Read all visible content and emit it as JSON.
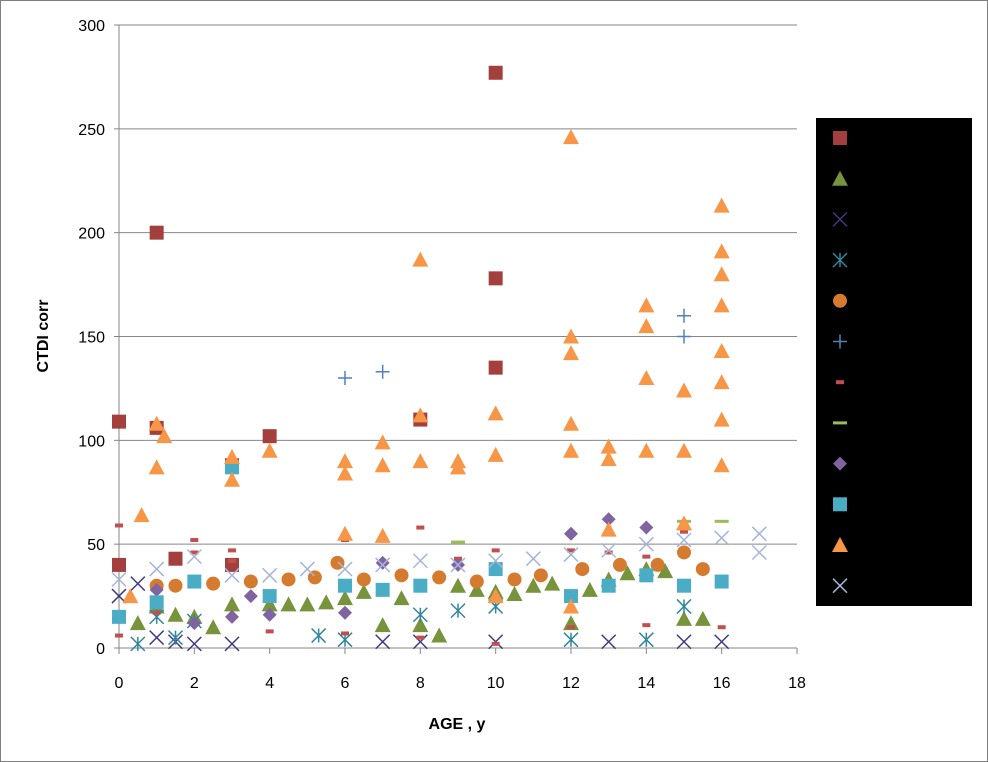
{
  "chart_data": {
    "type": "scatter",
    "title": "",
    "xlabel": "AGE , y",
    "ylabel": "CTDI corr",
    "xlim": [
      0,
      18
    ],
    "ylim": [
      0,
      300
    ],
    "xticks": [
      0,
      2,
      4,
      6,
      8,
      10,
      12,
      14,
      16,
      18
    ],
    "yticks": [
      0,
      50,
      100,
      150,
      200,
      250,
      300
    ],
    "grid": "horizontal",
    "legend_position": "right",
    "series": [
      {
        "name": "",
        "marker": "square",
        "color": "#a3403d",
        "x": [
          0,
          0,
          1,
          1,
          1.5,
          3,
          3,
          4,
          8,
          10,
          10,
          10
        ],
        "y": [
          109,
          40,
          200,
          106,
          43,
          40,
          88,
          102,
          110,
          277,
          178,
          135
        ]
      },
      {
        "name": "",
        "marker": "triangle",
        "color": "#77933c",
        "x": [
          0.5,
          1,
          1.5,
          2,
          2.5,
          3,
          4,
          4.5,
          5,
          5.5,
          6,
          6.5,
          7,
          7.5,
          8,
          8.5,
          9,
          9.5,
          10,
          10.5,
          11,
          11.5,
          12,
          12.5,
          13,
          13.5,
          14,
          14.5,
          15,
          15.5
        ],
        "y": [
          12,
          20,
          16,
          15,
          10,
          21,
          21,
          21,
          21,
          22,
          24,
          27,
          11,
          24,
          11,
          6,
          30,
          28,
          27,
          26,
          30,
          31,
          12,
          28,
          33,
          36,
          38,
          37,
          14,
          14
        ]
      },
      {
        "name": "",
        "marker": "x",
        "color": "#3f3a80",
        "x": [
          0,
          0.5,
          1,
          1.5,
          2,
          3,
          7,
          8,
          10,
          13,
          15,
          16
        ],
        "y": [
          25,
          31,
          5,
          3,
          2,
          2,
          3,
          3,
          3,
          3,
          3,
          3
        ]
      },
      {
        "name": "",
        "marker": "star",
        "color": "#31859c",
        "x": [
          0.5,
          1,
          1.5,
          2,
          5.3,
          6,
          8,
          9,
          10,
          12,
          14,
          15
        ],
        "y": [
          2,
          15,
          5,
          13,
          6,
          4,
          16,
          18,
          20,
          4,
          4,
          20
        ]
      },
      {
        "name": "",
        "marker": "circle",
        "color": "#d47b2f",
        "x": [
          1,
          1.5,
          2.5,
          3.5,
          4.5,
          5.2,
          5.8,
          6.5,
          7.5,
          8.5,
          9.5,
          10.5,
          11.2,
          12.3,
          13.3,
          14.3,
          15,
          15.5
        ],
        "y": [
          30,
          30,
          31,
          32,
          33,
          34,
          41,
          33,
          35,
          34,
          32,
          33,
          35,
          38,
          40,
          40,
          46,
          38
        ]
      },
      {
        "name": "",
        "marker": "plus",
        "color": "#4f81bd",
        "x": [
          6,
          7,
          15,
          15
        ],
        "y": [
          130,
          133,
          160,
          150
        ]
      },
      {
        "name": "",
        "marker": "dash",
        "color": "#c0504d",
        "x": [
          0,
          0,
          1,
          2,
          2,
          3,
          3,
          4,
          6,
          6,
          7,
          8,
          8,
          9,
          10,
          10,
          12,
          12,
          13,
          13,
          14,
          14,
          15,
          16
        ],
        "y": [
          59,
          6,
          17,
          52,
          46,
          47,
          42,
          8,
          52,
          7,
          53,
          58,
          5,
          43,
          47,
          2,
          47,
          10,
          56,
          46,
          44,
          11,
          56,
          10
        ]
      },
      {
        "name": "",
        "marker": "line",
        "color": "#9bbb59",
        "x": [
          9,
          15,
          16
        ],
        "y": [
          51,
          61,
          61
        ]
      },
      {
        "name": "",
        "marker": "diamond",
        "color": "#8064a2",
        "x": [
          1,
          2,
          3,
          3.5,
          4,
          6,
          7,
          9,
          12,
          13,
          14
        ],
        "y": [
          28,
          12,
          15,
          25,
          16,
          17,
          41,
          40,
          55,
          62,
          58
        ]
      },
      {
        "name": "",
        "marker": "square",
        "color": "#4bacc6",
        "x": [
          0,
          1,
          2,
          3,
          4,
          6,
          7,
          8,
          10,
          12,
          13,
          14,
          15,
          16
        ],
        "y": [
          15,
          22,
          32,
          87,
          25,
          30,
          28,
          30,
          38,
          25,
          30,
          35,
          30,
          32
        ]
      },
      {
        "name": "",
        "marker": "triangle",
        "color": "#f79646",
        "x": [
          0.3,
          0.6,
          1,
          1,
          1.2,
          3,
          3,
          4,
          6,
          6,
          6,
          7,
          7,
          7,
          8,
          8,
          8,
          9,
          9,
          10,
          10,
          10,
          12,
          12,
          12,
          12,
          12,
          12,
          13,
          13,
          13,
          14,
          14,
          14,
          14,
          15,
          15,
          15,
          16,
          16,
          16,
          16,
          16,
          16,
          16,
          16
        ],
        "y": [
          25,
          64,
          108,
          87,
          102,
          92,
          81,
          95,
          90,
          84,
          55,
          99,
          88,
          54,
          187,
          112,
          90,
          90,
          87,
          113,
          93,
          25,
          246,
          150,
          142,
          108,
          95,
          20,
          97,
          91,
          57,
          165,
          155,
          130,
          95,
          124,
          95,
          60,
          213,
          191,
          180,
          165,
          143,
          128,
          110,
          88
        ]
      },
      {
        "name": "",
        "marker": "x",
        "color": "#a5b5d9",
        "x": [
          0,
          1,
          2,
          3,
          4,
          5,
          6,
          7,
          8,
          9,
          10,
          11,
          12,
          13,
          14,
          15,
          16,
          17,
          17
        ],
        "y": [
          33,
          38,
          44,
          35,
          35,
          38,
          38,
          40,
          42,
          40,
          42,
          43,
          45,
          47,
          50,
          52,
          53,
          55,
          46
        ]
      }
    ]
  }
}
